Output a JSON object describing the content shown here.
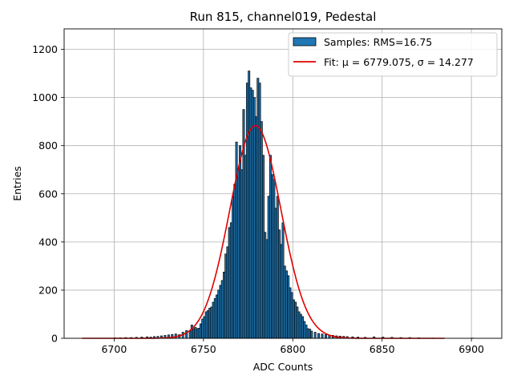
{
  "chart_data": {
    "type": "bar",
    "title": "Run 815, channel019, Pedestal",
    "xlabel": "ADC Counts",
    "ylabel": "Entries",
    "xlim": [
      6672,
      6917
    ],
    "ylim": [
      0,
      1285
    ],
    "xticks": [
      6700,
      6750,
      6800,
      6850,
      6900
    ],
    "yticks": [
      0,
      200,
      400,
      600,
      800,
      1000,
      1200
    ],
    "grid": true,
    "legend_position": "upper-right",
    "legend": [
      {
        "label": "Samples: RMS=16.75",
        "kind": "bar"
      },
      {
        "label": "Fit: μ = 6779.075, σ = 14.277",
        "kind": "line"
      }
    ],
    "colors": {
      "bars": "#1f77b4",
      "bar_edge": "#000000",
      "fit": "#e00000",
      "grid": "#b0b0b0"
    },
    "histogram": {
      "name": "Samples",
      "bin_width": 1,
      "bins": [
        [
          6700,
          2
        ],
        [
          6703,
          2
        ],
        [
          6706,
          3
        ],
        [
          6709,
          3
        ],
        [
          6712,
          4
        ],
        [
          6715,
          5
        ],
        [
          6718,
          6
        ],
        [
          6720,
          5
        ],
        [
          6722,
          7
        ],
        [
          6724,
          8
        ],
        [
          6726,
          10
        ],
        [
          6728,
          12
        ],
        [
          6730,
          14
        ],
        [
          6732,
          16
        ],
        [
          6734,
          18
        ],
        [
          6736,
          15
        ],
        [
          6738,
          25
        ],
        [
          6740,
          32
        ],
        [
          6742,
          30
        ],
        [
          6743,
          55
        ],
        [
          6744,
          40
        ],
        [
          6745,
          45
        ],
        [
          6746,
          40
        ],
        [
          6747,
          42
        ],
        [
          6748,
          60
        ],
        [
          6749,
          80
        ],
        [
          6750,
          90
        ],
        [
          6751,
          110
        ],
        [
          6752,
          115
        ],
        [
          6753,
          125
        ],
        [
          6754,
          130
        ],
        [
          6755,
          150
        ],
        [
          6756,
          165
        ],
        [
          6757,
          180
        ],
        [
          6758,
          200
        ],
        [
          6759,
          220
        ],
        [
          6760,
          240
        ],
        [
          6761,
          275
        ],
        [
          6762,
          350
        ],
        [
          6763,
          380
        ],
        [
          6764,
          460
        ],
        [
          6765,
          480
        ],
        [
          6766,
          590
        ],
        [
          6767,
          640
        ],
        [
          6768,
          815
        ],
        [
          6769,
          700
        ],
        [
          6770,
          800
        ],
        [
          6771,
          700
        ],
        [
          6772,
          950
        ],
        [
          6773,
          760
        ],
        [
          6774,
          1060
        ],
        [
          6775,
          1110
        ],
        [
          6776,
          1040
        ],
        [
          6777,
          1030
        ],
        [
          6778,
          1000
        ],
        [
          6779,
          920
        ],
        [
          6780,
          1080
        ],
        [
          6781,
          1060
        ],
        [
          6782,
          900
        ],
        [
          6783,
          760
        ],
        [
          6784,
          440
        ],
        [
          6785,
          410
        ],
        [
          6786,
          590
        ],
        [
          6787,
          760
        ],
        [
          6788,
          680
        ],
        [
          6789,
          660
        ],
        [
          6790,
          540
        ],
        [
          6791,
          590
        ],
        [
          6792,
          450
        ],
        [
          6793,
          390
        ],
        [
          6794,
          480
        ],
        [
          6795,
          300
        ],
        [
          6796,
          280
        ],
        [
          6797,
          260
        ],
        [
          6798,
          210
        ],
        [
          6799,
          190
        ],
        [
          6800,
          160
        ],
        [
          6801,
          150
        ],
        [
          6802,
          130
        ],
        [
          6803,
          110
        ],
        [
          6804,
          100
        ],
        [
          6805,
          90
        ],
        [
          6806,
          70
        ],
        [
          6807,
          55
        ],
        [
          6808,
          40
        ],
        [
          6809,
          38
        ],
        [
          6810,
          30
        ],
        [
          6812,
          25
        ],
        [
          6814,
          20
        ],
        [
          6816,
          18
        ],
        [
          6818,
          15
        ],
        [
          6820,
          13
        ],
        [
          6822,
          12
        ],
        [
          6824,
          10
        ],
        [
          6826,
          9
        ],
        [
          6828,
          8
        ],
        [
          6830,
          7
        ],
        [
          6833,
          6
        ],
        [
          6836,
          5
        ],
        [
          6840,
          4
        ],
        [
          6845,
          6
        ],
        [
          6850,
          5
        ],
        [
          6855,
          4
        ],
        [
          6860,
          3
        ],
        [
          6865,
          3
        ],
        [
          6870,
          2
        ],
        [
          6878,
          1
        ],
        [
          6900,
          1
        ]
      ]
    },
    "fit": {
      "name": "Fit",
      "mu": 6779.075,
      "sigma": 14.277,
      "amplitude": 883,
      "x_range": [
        6682,
        6885
      ]
    }
  }
}
